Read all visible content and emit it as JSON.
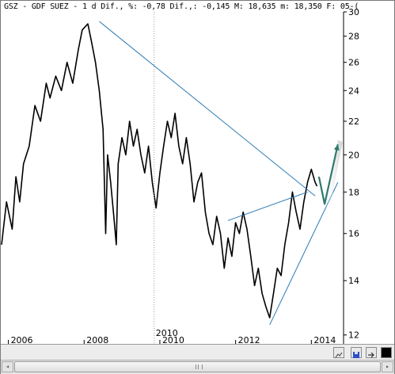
{
  "header": {
    "text": "GSZ - GDF SUEZ -  1 d Dif., %: -0,78 Dif.,: -0,145 M: 18,635 m: 18,350 F: 05-("
  },
  "icons": {
    "tool1": "chart-tool-icon",
    "tool2": "save-icon",
    "tool3": "arrow-tool-icon",
    "tool4": "black-square-icon",
    "scroll_left": "scroll-left-arrow-icon",
    "scroll_right": "scroll-right-arrow-icon"
  },
  "chart_data": {
    "type": "line",
    "x_tick_labels": [
      "2006",
      "2008",
      "2010",
      "2012",
      "2014"
    ],
    "x_ticks": [
      2005.9,
      2007.9,
      2009.9,
      2011.9,
      2013.9
    ],
    "x_divider_label": "2010",
    "x_divider_at": 2009.75,
    "y_tick_labels": [
      "30",
      "28",
      "26",
      "24",
      "22",
      "20",
      "18",
      "16",
      "14",
      "12"
    ],
    "y_ticks": [
      30,
      28,
      26,
      24,
      22,
      20,
      18,
      16,
      14,
      12
    ],
    "xlim": [
      2005.7,
      2014.75
    ],
    "ylim": [
      11.7,
      30
    ],
    "y_scale": "log",
    "series": [
      {
        "color": "#000000",
        "x": [
          2005.72,
          2005.85,
          2006.0,
          2006.1,
          2006.2,
          2006.3,
          2006.45,
          2006.6,
          2006.75,
          2006.9,
          2007.0,
          2007.15,
          2007.3,
          2007.45,
          2007.6,
          2007.75,
          2007.85,
          2008.0,
          2008.1,
          2008.2,
          2008.3,
          2008.4,
          2008.47,
          2008.52,
          2008.6,
          2008.7,
          2008.75,
          2008.8,
          2008.9,
          2009.0,
          2009.1,
          2009.2,
          2009.3,
          2009.4,
          2009.5,
          2009.6,
          2009.7,
          2009.8,
          2009.9,
          2010.0,
          2010.1,
          2010.2,
          2010.3,
          2010.4,
          2010.5,
          2010.6,
          2010.7,
          2010.8,
          2010.9,
          2011.0,
          2011.1,
          2011.2,
          2011.3,
          2011.4,
          2011.5,
          2011.6,
          2011.7,
          2011.8,
          2011.9,
          2012.0,
          2012.1,
          2012.2,
          2012.3,
          2012.4,
          2012.5,
          2012.6,
          2012.7,
          2012.8,
          2012.9,
          2013.0,
          2013.1,
          2013.2,
          2013.3,
          2013.4,
          2013.5,
          2013.6,
          2013.7,
          2013.8,
          2013.9,
          2014.0,
          2014.05
        ],
        "y": [
          15.5,
          17.5,
          16.2,
          18.8,
          17.5,
          19.5,
          20.5,
          23.0,
          22.0,
          24.5,
          23.5,
          25.0,
          24.0,
          26.0,
          24.5,
          27.0,
          28.5,
          29.0,
          27.5,
          26.0,
          24.0,
          21.5,
          16.0,
          20.0,
          18.5,
          16.5,
          15.5,
          19.5,
          21.0,
          20.0,
          22.0,
          20.5,
          21.5,
          20.0,
          19.0,
          20.5,
          18.5,
          17.2,
          19.0,
          20.5,
          22.0,
          21.0,
          22.5,
          20.5,
          19.5,
          21.0,
          19.5,
          17.5,
          18.5,
          19.0,
          17.0,
          16.0,
          15.5,
          16.8,
          16.0,
          14.5,
          15.8,
          15.0,
          16.5,
          16.0,
          17.0,
          16.2,
          15.0,
          13.8,
          14.5,
          13.5,
          13.0,
          12.6,
          13.5,
          14.5,
          14.2,
          15.5,
          16.5,
          18.0,
          17.0,
          16.2,
          17.5,
          18.5,
          19.2,
          18.5,
          18.3
        ]
      }
    ],
    "trendlines": [
      {
        "x1": 2008.3,
        "y1": 29.2,
        "x2": 2014.0,
        "y2": 17.8,
        "color": "#2d7bb5"
      },
      {
        "x1": 2012.8,
        "y1": 12.35,
        "x2": 2014.6,
        "y2": 18.5,
        "color": "#2d7bb5"
      },
      {
        "x1": 2011.7,
        "y1": 16.6,
        "x2": 2013.8,
        "y2": 18.0,
        "color": "#2d7bb5"
      }
    ],
    "projection": {
      "x": [
        2014.1,
        2014.25,
        2014.6
      ],
      "y": [
        18.8,
        17.4,
        20.6
      ],
      "color": "#2e7a6a"
    },
    "grid": false,
    "legend": "none"
  }
}
